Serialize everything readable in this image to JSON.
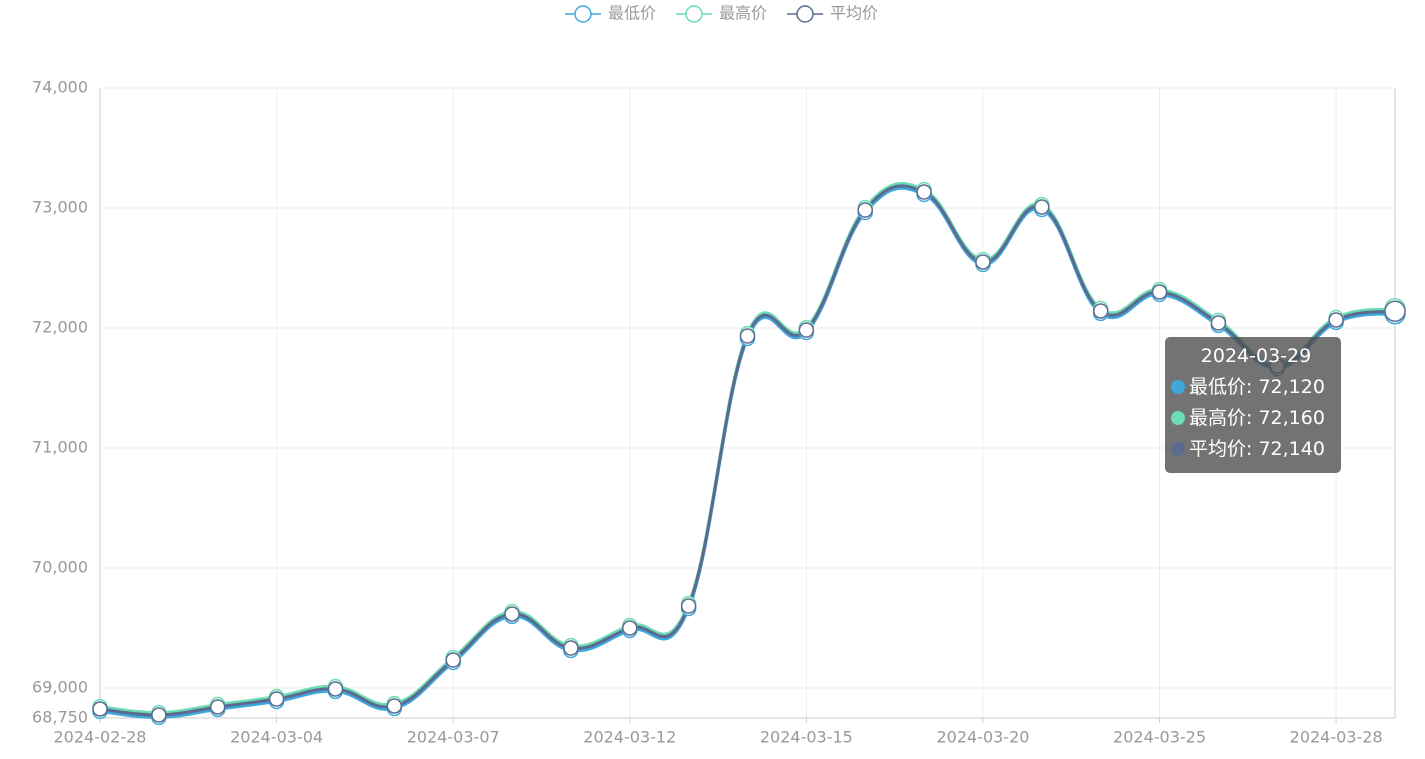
{
  "chart_data": {
    "type": "line",
    "categories": [
      "2024-02-28",
      null,
      null,
      "2024-03-04",
      null,
      null,
      "2024-03-07",
      null,
      null,
      "2024-03-12",
      null,
      null,
      "2024-03-15",
      null,
      null,
      "2024-03-20",
      null,
      null,
      "2024-03-25",
      null,
      null,
      "2024-03-28",
      "2024-03-29"
    ],
    "x_label_interval": 3,
    "series": [
      {
        "name": "最低价",
        "color": "#3fa7dc",
        "values": [
          68805,
          68755,
          68822,
          68888,
          68972,
          68830,
          69213,
          69597,
          69313,
          69480,
          69663,
          71913,
          71963,
          72963,
          73113,
          72530,
          72988,
          72122,
          72280,
          72022,
          71663,
          72047,
          72120
        ]
      },
      {
        "name": "最高价",
        "color": "#6bdcb4",
        "values": [
          68845,
          68795,
          68862,
          68928,
          69012,
          68870,
          69253,
          69637,
          69353,
          69520,
          69703,
          71953,
          72003,
          73003,
          73153,
          72570,
          73028,
          72162,
          72320,
          72062,
          71703,
          72087,
          72160
        ]
      },
      {
        "name": "平均价",
        "color": "#5b6a8e",
        "values": [
          68825,
          68775,
          68842,
          68908,
          68992,
          68850,
          69233,
          69617,
          69333,
          69500,
          69683,
          71933,
          71983,
          72983,
          73133,
          72550,
          73008,
          72142,
          72300,
          72042,
          71683,
          72067,
          72140
        ]
      }
    ],
    "ylim": [
      68750,
      74000
    ],
    "yticks": [
      {
        "value": 68750,
        "label": "68,750"
      },
      {
        "value": 69000,
        "label": "69,000"
      },
      {
        "value": 70000,
        "label": "70,000"
      },
      {
        "value": 71000,
        "label": "71,000"
      },
      {
        "value": 72000,
        "label": "72,000"
      },
      {
        "value": 73000,
        "label": "73,000"
      },
      {
        "value": 74000,
        "label": "74,000"
      }
    ],
    "grid": true,
    "legend": "top",
    "tooltip": {
      "index": 22,
      "value_labels": [
        "72,120",
        "72,160",
        "72,140"
      ]
    }
  }
}
